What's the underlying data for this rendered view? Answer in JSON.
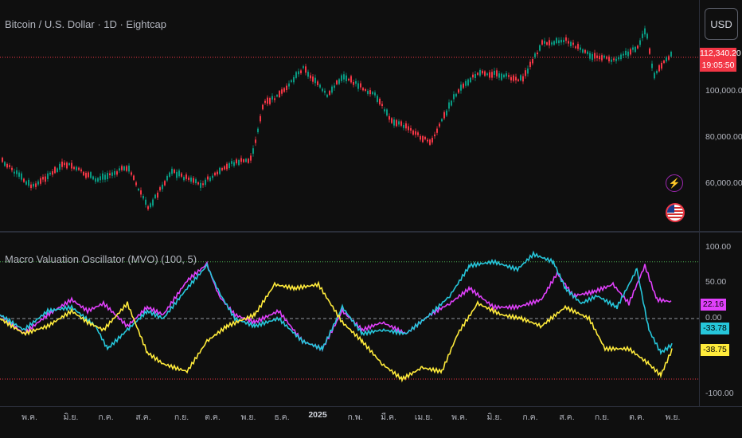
{
  "header": {
    "symbol_title": "Bitcoin / U.S. Dollar · 1D · Eightcap",
    "currency_button": "USD"
  },
  "price_scale": {
    "last_price": "112,340.20",
    "countdown": "19:05:50",
    "labels": [
      "100,000.00",
      "80,000.00",
      "60,000.00"
    ]
  },
  "indicator": {
    "title": "Macro Valuation Oscillator (MVO) (100, 5)",
    "scale_labels": [
      "100.00",
      "50.00",
      "0.00",
      "-100.00"
    ],
    "values": [
      {
        "label": "22.16",
        "color": "#e040fb"
      },
      {
        "label": "-33.78",
        "color": "#26c6da"
      },
      {
        "label": "-38.75",
        "color": "#ffeb3b"
      }
    ]
  },
  "time_axis": {
    "ticks": [
      "พ.ค.",
      "มิ.ย.",
      "ก.ค.",
      "ส.ค.",
      "ก.ย.",
      "ต.ค.",
      "พ.ย.",
      "ธ.ค.",
      "2025",
      "ก.พ.",
      "มี.ค.",
      "เม.ย.",
      "พ.ค.",
      "มิ.ย.",
      "ก.ค.",
      "ส.ค.",
      "ก.ย.",
      "ต.ค.",
      "พ.ย."
    ]
  },
  "icons": {
    "events": "lightning-icon",
    "economic": "us-flag-icon"
  },
  "colors": {
    "background": "#0f0f0f",
    "candle_up": "#089981",
    "candle_down": "#f23645",
    "price_line": "#f23645",
    "line_magenta": "#e040fb",
    "line_cyan": "#26c6da",
    "line_yellow": "#ffeb3b",
    "upper_band": "#4caf50",
    "lower_band": "#f23645"
  }
}
